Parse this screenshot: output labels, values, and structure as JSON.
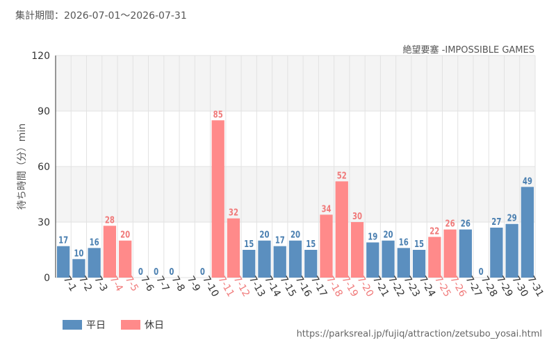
{
  "header": {
    "period": "集計期間：2026-07-01～2026-07-31"
  },
  "footer": {
    "url": "https://parksreal.jp/fujiq/attraction/zetsubo_yosai.html"
  },
  "colors": {
    "weekday": "#5b8fbf",
    "holiday": "#ff8a8a",
    "weekday_label": "#4a7fb0",
    "holiday_label": "#f07a7a"
  },
  "legend": {
    "weekday": "平日",
    "holiday": "休日"
  },
  "chart_data": {
    "type": "bar",
    "title": "絶望要塞 -IMPOSSIBLE GAMES",
    "ylabel": "待ち時間（分）min",
    "xlabel": "",
    "ylim": [
      0,
      120
    ],
    "yticks": [
      0,
      30,
      60,
      90,
      120
    ],
    "grid": true,
    "legend_position": "bottom-left",
    "categories": [
      "7-1",
      "7-2",
      "7-3",
      "7-4",
      "7-5",
      "7-6",
      "7-7",
      "7-8",
      "7-9",
      "7-10",
      "7-11",
      "7-12",
      "7-13",
      "7-14",
      "7-15",
      "7-16",
      "7-17",
      "7-18",
      "7-19",
      "7-20",
      "7-21",
      "7-22",
      "7-23",
      "7-24",
      "7-25",
      "7-26",
      "7-27",
      "7-28",
      "7-29",
      "7-30",
      "7-31"
    ],
    "values": [
      17,
      10,
      16,
      28,
      20,
      0,
      0,
      0,
      null,
      0,
      85,
      32,
      15,
      20,
      17,
      20,
      15,
      34,
      52,
      30,
      19,
      20,
      16,
      15,
      22,
      26,
      26,
      0,
      27,
      29,
      49
    ],
    "day_type": [
      "weekday",
      "weekday",
      "weekday",
      "holiday",
      "holiday",
      "weekday",
      "weekday",
      "weekday",
      "weekday",
      "weekday",
      "holiday",
      "holiday",
      "weekday",
      "weekday",
      "weekday",
      "weekday",
      "weekday",
      "holiday",
      "holiday",
      "holiday",
      "weekday",
      "weekday",
      "weekday",
      "weekday",
      "holiday",
      "holiday",
      "weekday",
      "weekday",
      "weekday",
      "weekday",
      "weekday"
    ]
  }
}
